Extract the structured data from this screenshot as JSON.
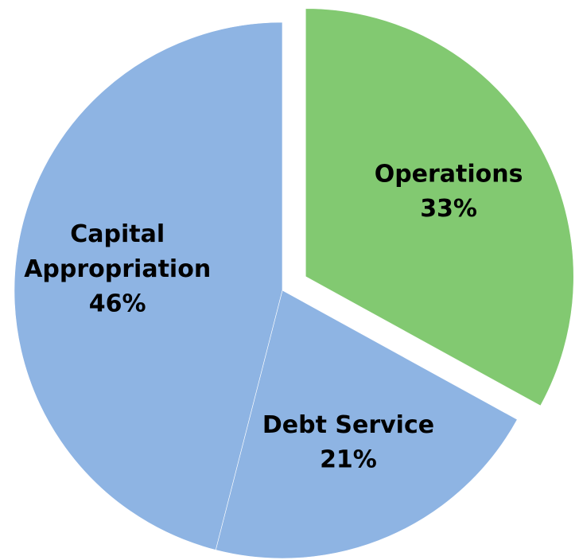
{
  "chart_data": {
    "type": "pie",
    "categories": [
      "Operations",
      "Debt Service",
      "Capital Appropriation"
    ],
    "values": [
      33,
      21,
      46
    ],
    "value_labels": [
      "33%",
      "21%",
      "46%"
    ],
    "colors": [
      "#82c971",
      "#8eb4e3",
      "#8eb4e3"
    ],
    "exploded": [
      true,
      false,
      false
    ]
  }
}
